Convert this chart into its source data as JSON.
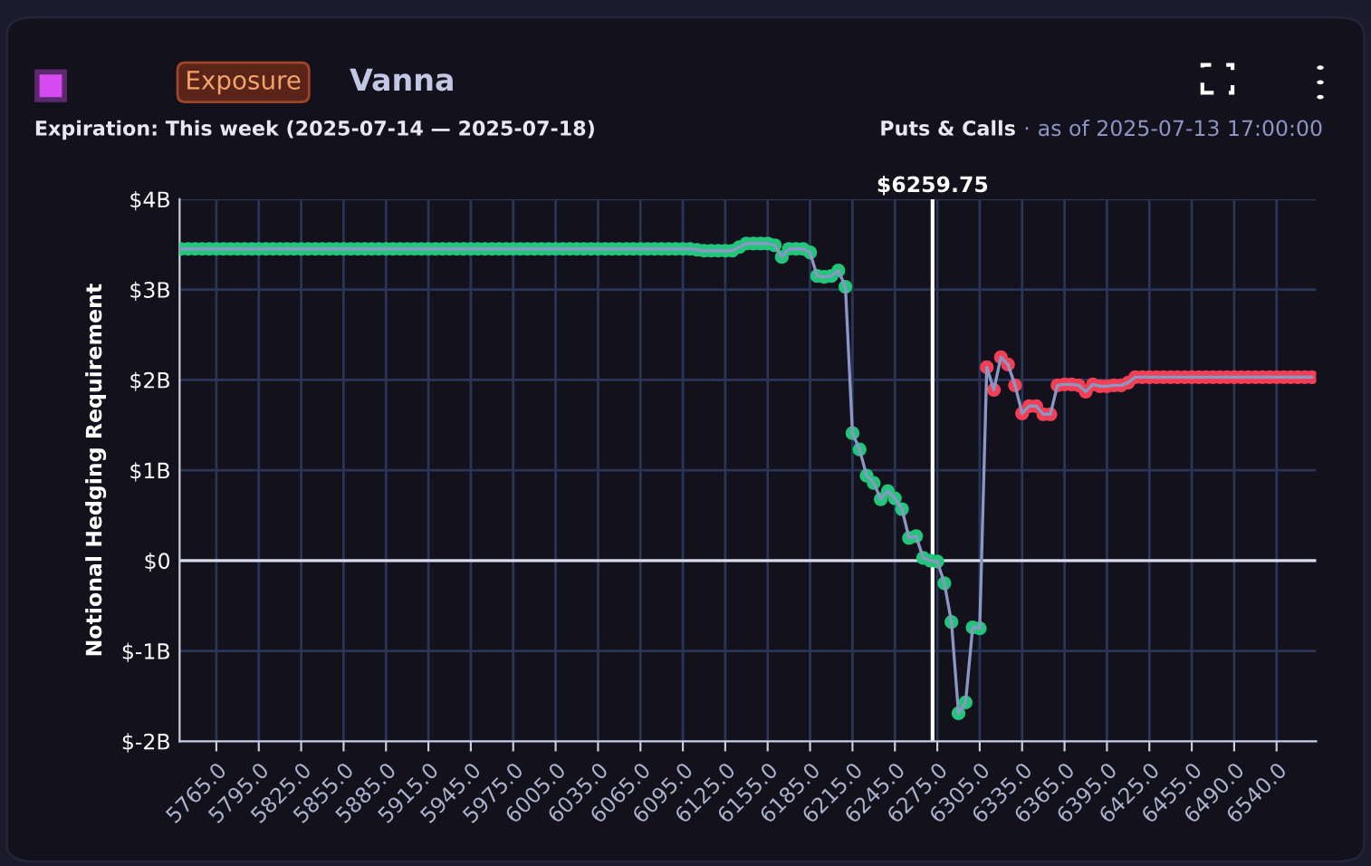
{
  "chart_data": {
    "type": "line",
    "title": "Vanna",
    "subtitle": "Expiration: This week (2025-07-14 — 2025-07-18)",
    "annotations": [
      "Exposure",
      "Puts & Calls",
      "as of 2025-07-13 17:00:00",
      "$6259.75",
      "·"
    ],
    "ylabel": "Notional Hedging Requirement",
    "categories": [
      null,
      null,
      null,
      null,
      null,
      "5765.0",
      null,
      null,
      null,
      null,
      null,
      "5795.0",
      null,
      null,
      null,
      null,
      null,
      "5825.0",
      null,
      null,
      null,
      null,
      null,
      "5855.0",
      null,
      null,
      null,
      null,
      null,
      "5885.0",
      null,
      null,
      null,
      null,
      null,
      "5915.0",
      null,
      null,
      null,
      null,
      null,
      "5945.0",
      null,
      null,
      null,
      null,
      null,
      "5975.0",
      null,
      null,
      null,
      null,
      null,
      "6005.0",
      null,
      null,
      null,
      null,
      null,
      "6035.0",
      null,
      null,
      null,
      null,
      null,
      "6065.0",
      null,
      null,
      null,
      null,
      null,
      "6095.0",
      null,
      null,
      null,
      null,
      null,
      "6125.0",
      null,
      null,
      null,
      null,
      null,
      "6155.0",
      null,
      null,
      null,
      null,
      null,
      "6185.0",
      null,
      null,
      null,
      null,
      null,
      "6215.0",
      null,
      null,
      null,
      null,
      null,
      "6245.0",
      null,
      null,
      null,
      null,
      null,
      "6275.0",
      null,
      null,
      null,
      null,
      null,
      "6305.0",
      null,
      null,
      null,
      null,
      null,
      "6335.0",
      null,
      null,
      null,
      null,
      null,
      "6365.0",
      null,
      null,
      null,
      null,
      null,
      "6395.0",
      null,
      null,
      null,
      null,
      null,
      "6425.0",
      null,
      null,
      null,
      null,
      null,
      "6455.0",
      null,
      null,
      null,
      null,
      null,
      "6490.0",
      null,
      null,
      null,
      null,
      null,
      "6540.0",
      null,
      null,
      null,
      null,
      null
    ],
    "series": [
      {
        "color": "#8a97c4",
        "values": [
          3.45,
          3.45,
          3.45,
          3.45,
          3.45,
          3.45,
          3.45,
          3.45,
          3.45,
          3.45,
          3.45,
          3.45,
          3.45,
          3.45,
          3.45,
          3.45,
          3.45,
          3.45,
          3.45,
          3.45,
          3.45,
          3.45,
          3.45,
          3.45,
          3.45,
          3.45,
          3.45,
          3.45,
          3.45,
          3.45,
          3.45,
          3.45,
          3.45,
          3.45,
          3.45,
          3.45,
          3.45,
          3.45,
          3.45,
          3.45,
          3.45,
          3.45,
          3.45,
          3.45,
          3.45,
          3.45,
          3.45,
          3.45,
          3.45,
          3.45,
          3.45,
          3.45,
          3.45,
          3.45,
          3.45,
          3.45,
          3.45,
          3.45,
          3.45,
          3.45,
          3.45,
          3.45,
          3.45,
          3.45,
          3.45,
          3.45,
          3.45,
          3.45,
          3.45,
          3.45,
          3.45,
          3.45,
          3.45,
          3.44,
          3.43,
          3.43,
          3.43,
          3.43,
          3.43,
          3.47,
          3.51,
          3.51,
          3.51,
          3.51,
          3.49,
          3.36,
          3.45,
          3.45,
          3.45,
          3.41,
          3.15,
          3.14,
          3.15,
          3.21,
          3.03,
          1.41,
          1.23,
          0.94,
          0.86,
          0.68,
          0.77,
          0.69,
          0.57,
          0.25,
          0.27,
          0.03,
          0.0,
          -0.01,
          -0.25,
          -0.68,
          -1.69,
          -1.57,
          -0.74,
          -0.75,
          2.14,
          1.89,
          2.25,
          2.17,
          1.94,
          1.63,
          1.71,
          1.71,
          1.62,
          1.62,
          1.94,
          1.95,
          1.95,
          1.94,
          1.87,
          1.95,
          1.93,
          1.93,
          1.94,
          1.94,
          1.97,
          2.03,
          2.03,
          2.03,
          2.03,
          2.03,
          2.03,
          2.03,
          2.03,
          2.03,
          2.03,
          2.03,
          2.03,
          2.03,
          2.03,
          2.03,
          2.03,
          2.03,
          2.03,
          2.03,
          2.03,
          2.03,
          2.03,
          2.03,
          2.03,
          2.03,
          2.03
        ],
        "colors": [
          "#22c57a",
          "#22c57a",
          "#22c57a",
          "#22c57a",
          "#22c57a",
          "#22c57a",
          "#22c57a",
          "#22c57a",
          "#22c57a",
          "#22c57a",
          "#22c57a",
          "#22c57a",
          "#22c57a",
          "#22c57a",
          "#22c57a",
          "#22c57a",
          "#22c57a",
          "#22c57a",
          "#22c57a",
          "#22c57a",
          "#22c57a",
          "#22c57a",
          "#22c57a",
          "#22c57a",
          "#22c57a",
          "#22c57a",
          "#22c57a",
          "#22c57a",
          "#22c57a",
          "#22c57a",
          "#22c57a",
          "#22c57a",
          "#22c57a",
          "#22c57a",
          "#22c57a",
          "#22c57a",
          "#22c57a",
          "#22c57a",
          "#22c57a",
          "#22c57a",
          "#22c57a",
          "#22c57a",
          "#22c57a",
          "#22c57a",
          "#22c57a",
          "#22c57a",
          "#22c57a",
          "#22c57a",
          "#22c57a",
          "#22c57a",
          "#22c57a",
          "#22c57a",
          "#22c57a",
          "#22c57a",
          "#22c57a",
          "#22c57a",
          "#22c57a",
          "#22c57a",
          "#22c57a",
          "#22c57a",
          "#22c57a",
          "#22c57a",
          "#22c57a",
          "#22c57a",
          "#22c57a",
          "#22c57a",
          "#22c57a",
          "#22c57a",
          "#22c57a",
          "#22c57a",
          "#22c57a",
          "#22c57a",
          "#22c57a",
          "#22c57a",
          "#22c57a",
          "#22c57a",
          "#22c57a",
          "#22c57a",
          "#22c57a",
          "#22c57a",
          "#22c57a",
          "#22c57a",
          "#22c57a",
          "#22c57a",
          "#22c57a",
          "#22c57a",
          "#22c57a",
          "#22c57a",
          "#22c57a",
          "#22c57a",
          "#22c57a",
          "#22c57a",
          "#22c57a",
          "#22c57a",
          "#22c57a",
          "#22c57a",
          "#22c57a",
          "#22c57a",
          "#22c57a",
          "#22c57a",
          "#22c57a",
          "#22c57a",
          "#22c57a",
          "#22c57a",
          "#22c57a",
          "#22c57a",
          "#22c57a",
          "#22c57a",
          "#22c57a",
          "#22c57a",
          "#22c57a",
          "#22c57a",
          "#22c57a",
          "#22c57a",
          "#f23f55",
          "#f23f55",
          "#f23f55",
          "#f23f55",
          "#f23f55",
          "#f23f55",
          "#f23f55",
          "#f23f55",
          "#f23f55",
          "#f23f55",
          "#f23f55",
          "#f23f55",
          "#f23f55",
          "#f23f55",
          "#f23f55",
          "#f23f55",
          "#f23f55",
          "#f23f55",
          "#f23f55",
          "#f23f55",
          "#f23f55",
          "#f23f55",
          "#f23f55",
          "#f23f55",
          "#f23f55",
          "#f23f55",
          "#f23f55",
          "#f23f55",
          "#f23f55",
          "#f23f55",
          "#f23f55",
          "#f23f55",
          "#f23f55",
          "#f23f55",
          "#f23f55",
          "#f23f55",
          "#f23f55",
          "#f23f55",
          "#f23f55",
          "#f23f55",
          "#f23f55",
          "#f23f55",
          "#f23f55",
          "#f23f55",
          "#f23f55",
          "#f23f55",
          "#f23f55"
        ]
      }
    ],
    "ylim": [
      -2,
      4
    ],
    "yticks": [
      {
        "value": -2,
        "label": "$-2B"
      },
      {
        "value": -1,
        "label": "$-1B"
      },
      {
        "value": 0,
        "label": "$0"
      },
      {
        "value": 1,
        "label": "$1B"
      },
      {
        "value": 2,
        "label": "$2B"
      },
      {
        "value": 3,
        "label": "$3B"
      },
      {
        "value": 4,
        "label": "$4B"
      }
    ],
    "ref_lines": [
      {
        "axis": "y",
        "value": 0,
        "color": "#d8dcea"
      }
    ],
    "grid": true,
    "marker": "circle",
    "line_style": "solid",
    "legend": false
  }
}
